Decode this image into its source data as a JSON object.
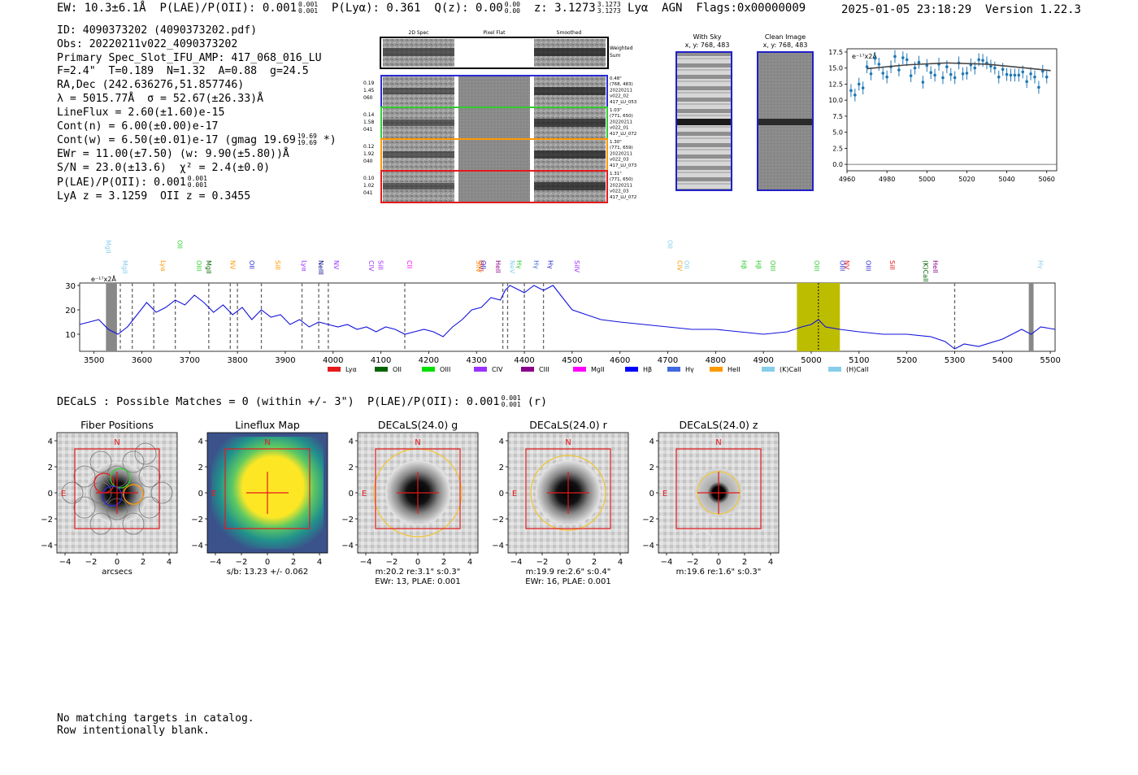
{
  "header": {
    "ew": "EW: 10.3±6.1Å",
    "plae_label": "P(LAE)/P(OII): 0.001",
    "plae_hi": "0.001",
    "plae_lo": "0.001",
    "plya": "P(Lyα): 0.361",
    "qz_label": "Q(z): 0.00",
    "qz_hi": "0.00",
    "qz_lo": "0.00",
    "z_label": "z: 3.1273",
    "z_hi": "3.1273",
    "z_lo": "3.1273",
    "tail": "Lyα  AGN  Flags:0x00000009",
    "datetime": "2025-01-05 23:18:29  Version 1.22.3"
  },
  "info": {
    "id": "ID: 4090373202 (4090373202.pdf)",
    "obs": "Obs: 20220211v022_4090373202",
    "slot": "Primary Spec_Slot_IFU_AMP: 417_068_016_LU",
    "fit": "F=2.4\"  T=0.189  N=1.32  A=0.88  g=24.5",
    "radec": "RA,Dec (242.636276,51.857746)",
    "lambda": "λ = 5015.77Å  σ = 52.67(±26.33)Å",
    "lineflux": "LineFlux = 2.60(±1.60)e-15",
    "contn": "Cont(n) = 6.00(±0.00)e-17",
    "contw": "Cont(w) = 6.50(±0.01)e-17 (gmag 19.69",
    "contw_hi": "19.69",
    "contw_lo": "19.69",
    "contw_tail": "*)",
    "ewr": "EWr = 11.00(±7.50) (w: 9.90(±5.80))Å",
    "sn": "S/N = 23.0(±13.6)  χ² = 2.4(±0.0)",
    "plae": "P(LAE)/P(OII): 0.001",
    "plae_hi": "0.001",
    "plae_lo": "0.001",
    "lyaz": "LyA z = 3.1259  OII z = 0.3455"
  },
  "cutouts": {
    "col_titles": [
      "2D Spec",
      "Pixel Flat",
      "Smoothed"
    ],
    "weighted_label": [
      "Weighted",
      "Sum"
    ],
    "rows": [
      {
        "left": [
          "0.19",
          "1.45",
          "060"
        ],
        "right": [
          "0.48\"",
          "(768, 483)",
          "20220211",
          "v022_02",
          "417_LU_053"
        ],
        "color": "#2b2bd6"
      },
      {
        "left": [
          "0.14",
          "1.58",
          "041"
        ],
        "right": [
          "1.03\"",
          "(771, 650)",
          "20220211",
          "v022_01",
          "417_LU_072"
        ],
        "color": "#33cc33"
      },
      {
        "left": [
          "0.12",
          "1.92",
          "040"
        ],
        "right": [
          "1.30\"",
          "(771, 659)",
          "20220211",
          "v022_03",
          "417_LU_073"
        ],
        "color": "#ff9900"
      },
      {
        "left": [
          "0.10",
          "1.02",
          "041"
        ],
        "right": [
          "1.31\"",
          "(771, 650)",
          "20220211",
          "v022_03",
          "417_LU_072"
        ],
        "color": "#e41a1c"
      }
    ],
    "with_sky_title": "With Sky",
    "clean_title": "Clean Image",
    "xy": "x, y: 768, 483"
  },
  "zoom_chart": {
    "type": "scatter",
    "unit_label": "e⁻¹⁷x2Å",
    "xlim": [
      4960,
      5065
    ],
    "ylim": [
      -1,
      18
    ],
    "xticks": [
      "4960",
      "4980",
      "5000",
      "5020",
      "5040",
      "5060"
    ],
    "yticks": [
      "0.0",
      "2.5",
      "5.0",
      "7.5",
      "10.0",
      "12.5",
      "15.0",
      "17.5"
    ],
    "x": [
      4962,
      4964,
      4966,
      4968,
      4970,
      4972,
      4974,
      4976,
      4978,
      4980,
      4982,
      4984,
      4986,
      4988,
      4990,
      4992,
      4994,
      4996,
      4998,
      5000,
      5002,
      5004,
      5006,
      5008,
      5010,
      5012,
      5014,
      5016,
      5018,
      5020,
      5022,
      5024,
      5026,
      5028,
      5030,
      5032,
      5034,
      5036,
      5038,
      5040,
      5042,
      5044,
      5046,
      5048,
      5050,
      5052,
      5054,
      5056,
      5058,
      5060
    ],
    "y": [
      11.5,
      10.8,
      12.5,
      11.9,
      15.2,
      14.1,
      16.5,
      15.6,
      14.2,
      13.6,
      15.2,
      16.8,
      14.7,
      16.6,
      16.3,
      13.8,
      15.0,
      15.9,
      12.8,
      15.4,
      14.3,
      13.9,
      15.6,
      13.5,
      15.2,
      14.0,
      13.5,
      15.8,
      14.1,
      14.2,
      15.5,
      15.0,
      16.3,
      16.2,
      15.8,
      15.3,
      15.0,
      13.6,
      14.8,
      14.0,
      13.9,
      13.9,
      13.9,
      14.4,
      12.9,
      14.1,
      13.6,
      12.0,
      14.5,
      13.6
    ],
    "fit_x": [
      4970,
      4990,
      5010,
      5030,
      5050,
      5062
    ],
    "fit_y": [
      14.9,
      15.5,
      15.8,
      15.6,
      15.0,
      14.6
    ]
  },
  "spectrum_chart": {
    "type": "line",
    "unit_label": "e⁻¹⁷x2Å",
    "xlim": [
      3470,
      5510
    ],
    "ylim": [
      3,
      31
    ],
    "xticks": [
      "3500",
      "3600",
      "3700",
      "3800",
      "3900",
      "4000",
      "4100",
      "4200",
      "4300",
      "4400",
      "4500",
      "4600",
      "4700",
      "4800",
      "4900",
      "5000",
      "5100",
      "5200",
      "5300",
      "5400",
      "5500"
    ],
    "yticks": [
      "10",
      "20",
      "30"
    ],
    "x": [
      3470,
      3490,
      3510,
      3530,
      3550,
      3570,
      3590,
      3610,
      3630,
      3650,
      3670,
      3690,
      3710,
      3730,
      3750,
      3770,
      3790,
      3810,
      3830,
      3850,
      3870,
      3890,
      3910,
      3930,
      3950,
      3970,
      3990,
      4010,
      4030,
      4050,
      4070,
      4090,
      4110,
      4130,
      4150,
      4170,
      4190,
      4210,
      4230,
      4250,
      4270,
      4290,
      4310,
      4330,
      4350,
      4360,
      4370,
      4380,
      4390,
      4400,
      4420,
      4440,
      4460,
      4480,
      4500,
      4530,
      4560,
      4600,
      4650,
      4700,
      4750,
      4800,
      4850,
      4900,
      4950,
      4980,
      5000,
      5015,
      5030,
      5060,
      5100,
      5150,
      5200,
      5250,
      5280,
      5300,
      5320,
      5350,
      5400,
      5440,
      5460,
      5480,
      5510
    ],
    "y": [
      14,
      15,
      16,
      12,
      10,
      13,
      18,
      23,
      19,
      21,
      24,
      22,
      26,
      23,
      19,
      22,
      18,
      21,
      16,
      20,
      17,
      18,
      14,
      16,
      13,
      15,
      14,
      13,
      14,
      12,
      13,
      11,
      13,
      12,
      10,
      11,
      12,
      11,
      9,
      13,
      16,
      20,
      21,
      25,
      24,
      28,
      30,
      29,
      28,
      27,
      30,
      28,
      30,
      25,
      20,
      18,
      16,
      15,
      14,
      13,
      12,
      12,
      11,
      10,
      11,
      13,
      14,
      16,
      13,
      12,
      11,
      10,
      10,
      9,
      7,
      4,
      6,
      5,
      8,
      12,
      10,
      13,
      12
    ],
    "lines": [
      {
        "name": "MgII",
        "x": 3525,
        "color": "#87ceeb"
      },
      {
        "name": "MgII",
        "x": 3560,
        "color": "#87ceeb"
      },
      {
        "name": "Lyα",
        "x": 3640,
        "color": "#ff9900"
      },
      {
        "name": "OII",
        "x": 3675,
        "color": "#33cc33"
      },
      {
        "name": "OIII",
        "x": 3715,
        "color": "#33cc33"
      },
      {
        "name": "MgII",
        "x": 3735,
        "color": "#006400"
      },
      {
        "name": "NV",
        "x": 3785,
        "color": "#ff9900"
      },
      {
        "name": "OII",
        "x": 3825,
        "color": "#2b2bd6"
      },
      {
        "name": "SiII",
        "x": 3880,
        "color": "#ff9900"
      },
      {
        "name": "Lyα",
        "x": 3935,
        "color": "#9b30ff"
      },
      {
        "name": "NeIII",
        "x": 3970,
        "color": "#00008b"
      },
      {
        "name": "NV",
        "x": 4002,
        "color": "#9b30ff"
      },
      {
        "name": "CIV",
        "x": 4075,
        "color": "#9b30ff"
      },
      {
        "name": "SiII",
        "x": 4095,
        "color": "#9b30ff"
      },
      {
        "name": "CII",
        "x": 4155,
        "color": "#ff00ff"
      },
      {
        "name": "OVI",
        "x": 4305,
        "color": "#e41a1c"
      },
      {
        "name": "SiIV",
        "x": 4300,
        "color": "#ff9900"
      },
      {
        "name": "OII",
        "x": 4310,
        "color": "#2b2bd6"
      },
      {
        "name": "HeII",
        "x": 4340,
        "color": "#8b008b"
      },
      {
        "name": "NeV",
        "x": 4370,
        "color": "#87ceeb"
      },
      {
        "name": "Hγ",
        "x": 4385,
        "color": "#33cc33"
      },
      {
        "name": "Hγ",
        "x": 4420,
        "color": "#4169e1"
      },
      {
        "name": "Hγ",
        "x": 4450,
        "color": "#2b2bd6"
      },
      {
        "name": "SiIV",
        "x": 4505,
        "color": "#9b30ff"
      },
      {
        "name": "OII",
        "x": 4700,
        "color": "#87ceeb"
      },
      {
        "name": "CIV",
        "x": 4720,
        "color": "#ff9900"
      },
      {
        "name": "OII",
        "x": 4735,
        "color": "#87ceeb"
      },
      {
        "name": "Hβ",
        "x": 4855,
        "color": "#33cc33"
      },
      {
        "name": "Hβ",
        "x": 4885,
        "color": "#33cc33"
      },
      {
        "name": "OIII",
        "x": 4915,
        "color": "#33cc33"
      },
      {
        "name": "OIII",
        "x": 5007,
        "color": "#33cc33"
      },
      {
        "name": "OIII",
        "x": 5060,
        "color": "#2b2bd6"
      },
      {
        "name": "NV",
        "x": 5070,
        "color": "#e41a1c"
      },
      {
        "name": "OIII",
        "x": 5115,
        "color": "#2b2bd6"
      },
      {
        "name": "SiII",
        "x": 5165,
        "color": "#e41a1c"
      },
      {
        "name": "(K)CaII",
        "x": 5235,
        "color": "#006400"
      },
      {
        "name": "HeII",
        "x": 5255,
        "color": "#8b008b"
      },
      {
        "name": "Hγ",
        "x": 5475,
        "color": "#87ceeb"
      }
    ],
    "dashed_x": [
      3555,
      3580,
      3625,
      3670,
      3740,
      3785,
      3800,
      3850,
      3935,
      3970,
      3990,
      4150,
      4355,
      4365,
      4400,
      4440,
      5300
    ],
    "highlight": [
      4970,
      5060
    ],
    "legend": [
      {
        "label": "Lyα",
        "color": "#e41a1c"
      },
      {
        "label": "OII",
        "color": "#006400"
      },
      {
        "label": "OIII",
        "color": "#00e000"
      },
      {
        "label": "CIV",
        "color": "#9b30ff"
      },
      {
        "label": "CIII",
        "color": "#8b008b"
      },
      {
        "label": "MgII",
        "color": "#ff00ff"
      },
      {
        "label": "Hβ",
        "color": "#0000ff"
      },
      {
        "label": "Hγ",
        "color": "#4169e1"
      },
      {
        "label": "HeII",
        "color": "#ff9900"
      },
      {
        "label": "(K)CaII",
        "color": "#87ceeb"
      },
      {
        "label": "(H)CaII",
        "color": "#87ceeb"
      }
    ]
  },
  "decals": {
    "line": "DECaLS : Possible Matches = 0 (within +/- 3\")  P(LAE)/P(OII): 0.001",
    "hi": "0.001",
    "lo": "0.001",
    "tail": "(r)",
    "panels": [
      {
        "title": "Fiber Positions",
        "caption1": "arcsecs",
        "caption2": ""
      },
      {
        "title": "Lineflux Map",
        "caption1": "s/b: 13.23 +/- 0.062",
        "caption2": ""
      },
      {
        "title": "DECaLS(24.0) g",
        "caption1": "m:20.2  re:3.1\"  s:0.3\"",
        "caption2": "EWr: 13, PLAE: 0.001"
      },
      {
        "title": "DECaLS(24.0) r",
        "caption1": "m:19.9  re:2.6\"  s:0.4\"",
        "caption2": "EWr: 16, PLAE: 0.001"
      },
      {
        "title": "DECaLS(24.0) z",
        "caption1": "m:19.6  re:1.6\"  s:0.3\"",
        "caption2": ""
      }
    ],
    "ticks": [
      "−4",
      "−2",
      "0",
      "2",
      "4"
    ],
    "ticks_y": [
      "4",
      "2",
      "0",
      "−2",
      "−4"
    ],
    "n_label": "N",
    "e_label": "E"
  },
  "footer": {
    "line1": "No matching targets in catalog.",
    "line2": "Row intentionally blank."
  }
}
